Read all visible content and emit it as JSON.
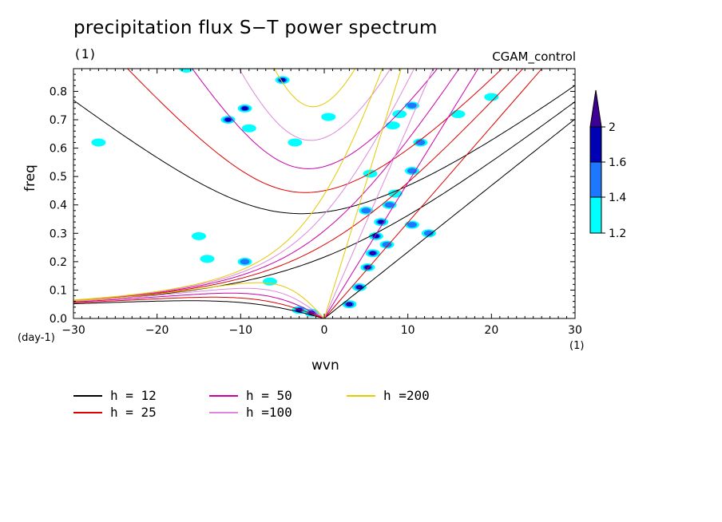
{
  "chart_data": {
    "type": "heatmap",
    "title": "precipitation flux S−T power spectrum",
    "units_label": "(1)",
    "run_label": "CGAM_control",
    "xlabel": "wvn",
    "ylabel": "freq",
    "x_unit": "(1)",
    "y_unit": "(day-1)",
    "xlim": [
      -30,
      30
    ],
    "ylim": [
      0,
      0.88
    ],
    "xticks": [
      -30,
      -20,
      -10,
      0,
      10,
      20,
      30
    ],
    "yticks": [
      0.0,
      0.1,
      0.2,
      0.3,
      0.4,
      0.5,
      0.6,
      0.7,
      0.8
    ],
    "colorbar": {
      "levels": [
        1.2,
        1.4,
        1.6,
        2
      ],
      "colors": [
        "#00ffff",
        "#1e78ff",
        "#0000b4",
        "#3c0096"
      ]
    },
    "dispersion_curves": [
      {
        "label": "h = 12",
        "h": 12,
        "color": "#000000"
      },
      {
        "label": "h = 25",
        "h": 25,
        "color": "#dd0000"
      },
      {
        "label": "h = 50",
        "h": 50,
        "color": "#cc00aa"
      },
      {
        "label": "h =100",
        "h": 100,
        "color": "#dd88dd"
      },
      {
        "label": "h =200",
        "h": 200,
        "color": "#e6c800"
      }
    ],
    "signal_blobs": [
      {
        "x": -1.5,
        "y": 0.02,
        "level": 3
      },
      {
        "x": -3,
        "y": 0.03,
        "level": 2
      },
      {
        "x": 3,
        "y": 0.05,
        "level": 3
      },
      {
        "x": 4.2,
        "y": 0.11,
        "level": 3
      },
      {
        "x": 5.2,
        "y": 0.18,
        "level": 3
      },
      {
        "x": 5.8,
        "y": 0.23,
        "level": 3
      },
      {
        "x": 6.2,
        "y": 0.29,
        "level": 2
      },
      {
        "x": 6.8,
        "y": 0.34,
        "level": 2
      },
      {
        "x": 7.5,
        "y": 0.26,
        "level": 1
      },
      {
        "x": 5.0,
        "y": 0.38,
        "level": 1
      },
      {
        "x": 7.8,
        "y": 0.4,
        "level": 1
      },
      {
        "x": 8.5,
        "y": 0.44,
        "level": 0
      },
      {
        "x": 10.5,
        "y": 0.52,
        "level": 1
      },
      {
        "x": 10.5,
        "y": 0.33,
        "level": 1
      },
      {
        "x": 11.5,
        "y": 0.62,
        "level": 1
      },
      {
        "x": 9.0,
        "y": 0.72,
        "level": 0
      },
      {
        "x": 10.5,
        "y": 0.75,
        "level": 1
      },
      {
        "x": 8.2,
        "y": 0.68,
        "level": 0
      },
      {
        "x": 12.5,
        "y": 0.3,
        "level": 1
      },
      {
        "x": 16,
        "y": 0.72,
        "level": 0
      },
      {
        "x": -9.5,
        "y": 0.74,
        "level": 2
      },
      {
        "x": -11.5,
        "y": 0.7,
        "level": 2
      },
      {
        "x": -9.0,
        "y": 0.67,
        "level": 0
      },
      {
        "x": -5.0,
        "y": 0.84,
        "level": 2
      },
      {
        "x": -16.5,
        "y": 0.88,
        "level": 0
      },
      {
        "x": -15,
        "y": 0.29,
        "level": 0
      },
      {
        "x": -9.5,
        "y": 0.2,
        "level": 1
      },
      {
        "x": -14,
        "y": 0.21,
        "level": 0
      },
      {
        "x": -6.5,
        "y": 0.13,
        "level": 0
      },
      {
        "x": 5.5,
        "y": 0.51,
        "level": 0
      },
      {
        "x": 0.5,
        "y": 0.71,
        "level": 0
      },
      {
        "x": -3.5,
        "y": 0.62,
        "level": 0
      },
      {
        "x": -27,
        "y": 0.62,
        "level": 0
      },
      {
        "x": 20,
        "y": 0.78,
        "level": 0
      }
    ]
  }
}
